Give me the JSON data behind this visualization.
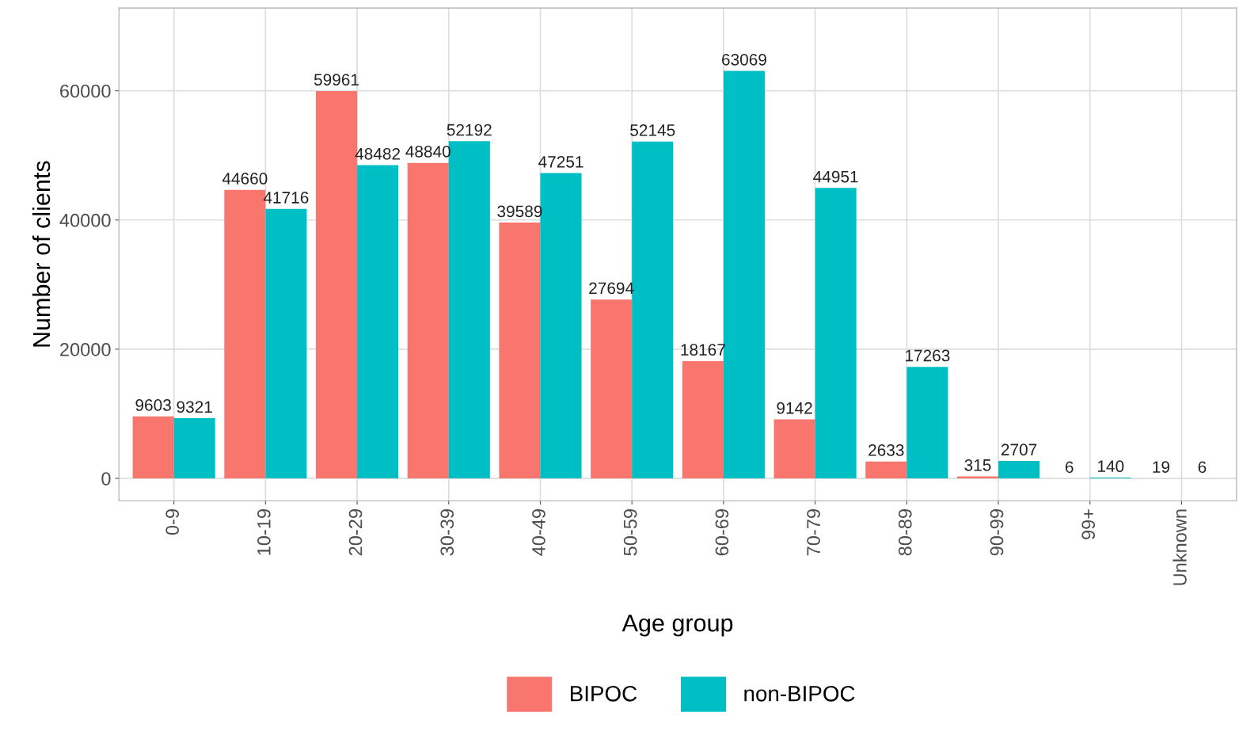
{
  "chart_data": {
    "type": "bar",
    "xlabel": "Age group",
    "ylabel": "Number of clients",
    "categories": [
      "0-9",
      "10-19",
      "20-29",
      "30-39",
      "40-49",
      "50-59",
      "60-69",
      "70-79",
      "80-89",
      "90-99",
      "99+",
      "Unknown"
    ],
    "series": [
      {
        "name": "BIPOC",
        "color": "#f8766d",
        "values": [
          9603,
          44660,
          59961,
          48840,
          39589,
          27694,
          18167,
          9142,
          2633,
          315,
          6,
          19
        ]
      },
      {
        "name": "non-BIPOC",
        "color": "#00bfc4",
        "values": [
          9321,
          41716,
          48482,
          52192,
          47251,
          52145,
          63069,
          44951,
          17263,
          2707,
          140,
          6
        ]
      }
    ],
    "ylim": [
      -3450,
      72800
    ],
    "yticks": [
      0,
      20000,
      40000,
      60000
    ],
    "grid": true,
    "legend": "bottom",
    "data_labels": true
  }
}
